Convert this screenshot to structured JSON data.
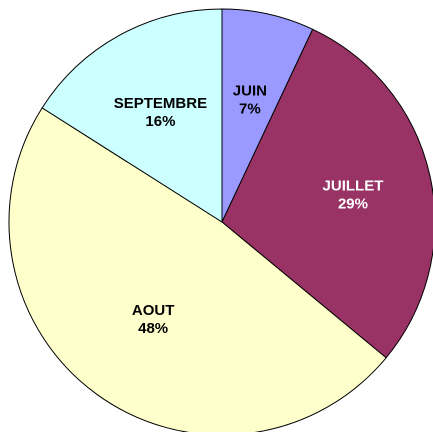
{
  "chart_data": {
    "type": "pie",
    "title": "",
    "start_angle_deg": 0,
    "direction": "clockwise",
    "slices": [
      {
        "label": "JUIN",
        "value": 7,
        "value_label": "7%",
        "color": "#9999ff",
        "text_color": "#000000"
      },
      {
        "label": "JUILLET",
        "value": 29,
        "value_label": "29%",
        "color": "#993366",
        "text_color": "#ffffff"
      },
      {
        "label": "AOUT",
        "value": 48,
        "value_label": "48%",
        "color": "#ffffcc",
        "text_color": "#000000"
      },
      {
        "label": "SEPTEMBRE",
        "value": 16,
        "value_label": "16%",
        "color": "#ccffff",
        "text_color": "#000000"
      }
    ]
  }
}
